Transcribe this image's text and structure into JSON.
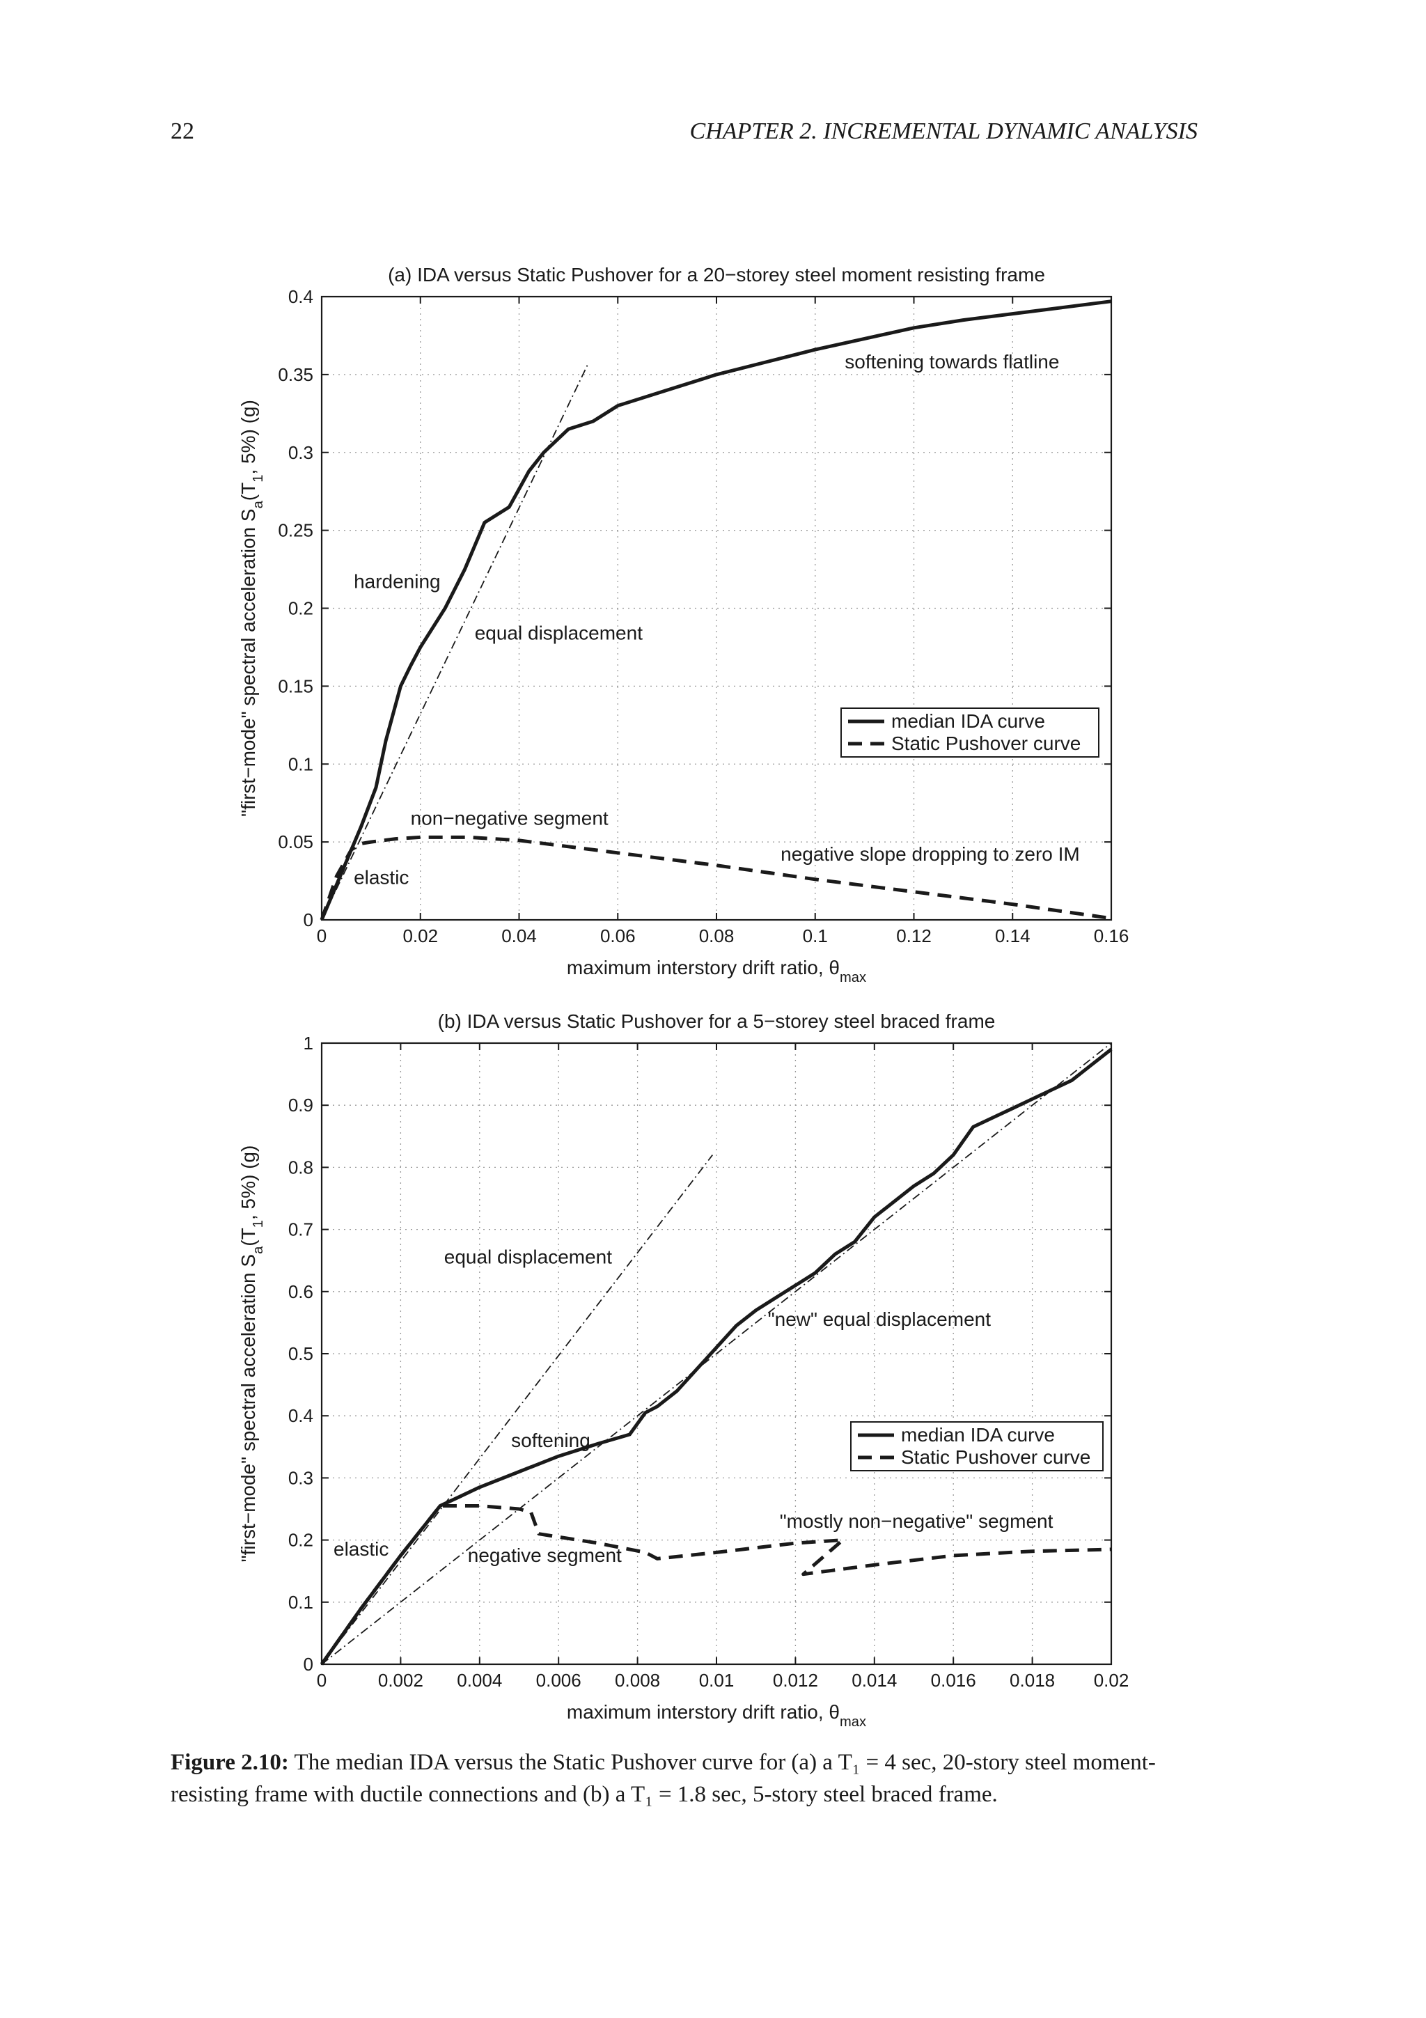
{
  "header": {
    "page_number": "22",
    "chapter_title": "CHAPTER 2.  INCREMENTAL DYNAMIC ANALYSIS"
  },
  "figure": {
    "caption_label": "Figure 2.10:",
    "caption_text": "The median IDA versus the Static Pushover curve for (a) a T₁ = 4 sec, 20-story steel moment-resisting frame with ductile connections and (b) a T₁ = 1.8 sec, 5-story steel braced frame."
  },
  "chart_data": [
    {
      "type": "line",
      "title": "(a) IDA versus Static Pushover for a 20−storey steel moment resisting frame",
      "xlabel": "maximum interstory drift ratio, θmax",
      "ylabel": "\"first−mode\" spectral acceleration Sa(T1, 5%) (g)",
      "xlim": [
        0,
        0.16
      ],
      "ylim": [
        0,
        0.4
      ],
      "xticks": [
        "0",
        "0.02",
        "0.04",
        "0.06",
        "0.08",
        "0.1",
        "0.12",
        "0.14",
        "0.16"
      ],
      "yticks": [
        "0",
        "0.05",
        "0.1",
        "0.15",
        "0.2",
        "0.25",
        "0.3",
        "0.35",
        "0.4"
      ],
      "grid": true,
      "legend_position": "center-right",
      "series": [
        {
          "name": "median IDA curve",
          "style": "solid",
          "x": [
            0,
            0.004,
            0.008,
            0.011,
            0.013,
            0.016,
            0.018,
            0.02,
            0.025,
            0.029,
            0.033,
            0.038,
            0.042,
            0.045,
            0.05,
            0.055,
            0.06,
            0.07,
            0.08,
            0.09,
            0.1,
            0.11,
            0.12,
            0.13,
            0.14,
            0.15,
            0.16
          ],
          "y": [
            0,
            0.03,
            0.06,
            0.085,
            0.115,
            0.15,
            0.163,
            0.175,
            0.2,
            0.225,
            0.255,
            0.265,
            0.288,
            0.3,
            0.315,
            0.32,
            0.33,
            0.34,
            0.35,
            0.358,
            0.366,
            0.373,
            0.38,
            0.385,
            0.389,
            0.393,
            0.397
          ]
        },
        {
          "name": "Static Pushover curve",
          "style": "dashed",
          "x": [
            0,
            0.003,
            0.006,
            0.008,
            0.01,
            0.015,
            0.02,
            0.025,
            0.03,
            0.04,
            0.05,
            0.06,
            0.08,
            0.1,
            0.12,
            0.14,
            0.16
          ],
          "y": [
            0,
            0.028,
            0.045,
            0.049,
            0.05,
            0.052,
            0.053,
            0.053,
            0.053,
            0.051,
            0.047,
            0.043,
            0.035,
            0.026,
            0.018,
            0.01,
            0.001
          ]
        },
        {
          "name": "",
          "style": "dashdot",
          "x": [
            0,
            0.054
          ],
          "y": [
            0,
            0.357
          ]
        }
      ],
      "annotations": [
        {
          "text": "softening towards flatline",
          "x": 0.106,
          "y": 0.354
        },
        {
          "text": "hardening",
          "x": 0.0065,
          "y": 0.213
        },
        {
          "text": "equal displacement",
          "x": 0.031,
          "y": 0.18
        },
        {
          "text": "non−negative segment",
          "x": 0.018,
          "y": 0.061
        },
        {
          "text": "negative slope dropping to zero IM",
          "x": 0.093,
          "y": 0.038
        },
        {
          "text": "elastic",
          "x": 0.0065,
          "y": 0.023
        }
      ]
    },
    {
      "type": "line",
      "title": "(b) IDA versus Static Pushover for a 5−storey steel braced frame",
      "xlabel": "maximum interstory drift ratio, θmax",
      "ylabel": "\"first−mode\" spectral acceleration Sa(T1, 5%) (g)",
      "xlim": [
        0,
        0.02
      ],
      "ylim": [
        0,
        1
      ],
      "xticks": [
        "0",
        "0.002",
        "0.004",
        "0.006",
        "0.008",
        "0.01",
        "0.012",
        "0.014",
        "0.016",
        "0.018",
        "0.02"
      ],
      "yticks": [
        "0",
        "0.1",
        "0.2",
        "0.3",
        "0.4",
        "0.5",
        "0.6",
        "0.7",
        "0.8",
        "0.9",
        "1"
      ],
      "grid": true,
      "legend_position": "center-right",
      "series": [
        {
          "name": "median IDA curve",
          "style": "solid",
          "x": [
            0,
            0.001,
            0.002,
            0.003,
            0.0035,
            0.004,
            0.005,
            0.006,
            0.007,
            0.0078,
            0.0082,
            0.0085,
            0.009,
            0.0095,
            0.01,
            0.0105,
            0.011,
            0.0115,
            0.012,
            0.0125,
            0.013,
            0.0135,
            0.014,
            0.0145,
            0.015,
            0.0155,
            0.016,
            0.0165,
            0.017,
            0.0175,
            0.018,
            0.0185,
            0.019,
            0.0195,
            0.02
          ],
          "y": [
            0,
            0.09,
            0.175,
            0.255,
            0.27,
            0.285,
            0.31,
            0.335,
            0.355,
            0.37,
            0.405,
            0.415,
            0.44,
            0.475,
            0.51,
            0.545,
            0.57,
            0.59,
            0.61,
            0.63,
            0.66,
            0.68,
            0.72,
            0.745,
            0.77,
            0.79,
            0.82,
            0.865,
            0.88,
            0.895,
            0.91,
            0.925,
            0.94,
            0.965,
            0.99
          ]
        },
        {
          "name": "Static Pushover curve",
          "style": "dashed",
          "x": [
            0,
            0.001,
            0.002,
            0.003,
            0.004,
            0.005,
            0.0053,
            0.0055,
            0.007,
            0.0082,
            0.0085,
            0.01,
            0.012,
            0.0132,
            0.0122,
            0.014,
            0.016,
            0.018,
            0.02
          ],
          "y": [
            0,
            0.09,
            0.175,
            0.255,
            0.255,
            0.25,
            0.245,
            0.21,
            0.195,
            0.18,
            0.17,
            0.18,
            0.195,
            0.2,
            0.145,
            0.16,
            0.175,
            0.182,
            0.185
          ]
        },
        {
          "name": "",
          "style": "dashdot",
          "x": [
            0,
            0.0099
          ],
          "y": [
            0,
            0.82
          ]
        },
        {
          "name": "",
          "style": "dashdot",
          "x": [
            0,
            0.02
          ],
          "y": [
            0,
            1.0
          ]
        }
      ],
      "annotations": [
        {
          "text": "equal displacement",
          "x": 0.0031,
          "y": 0.645
        },
        {
          "text": "\"new\" equal displacement",
          "x": 0.0113,
          "y": 0.545
        },
        {
          "text": "softening",
          "x": 0.0048,
          "y": 0.35
        },
        {
          "text": "\"mostly non−negative\" segment",
          "x": 0.0116,
          "y": 0.22
        },
        {
          "text": "elastic",
          "x": 0.0003,
          "y": 0.175
        },
        {
          "text": "negative segment",
          "x": 0.0037,
          "y": 0.165
        }
      ]
    }
  ]
}
